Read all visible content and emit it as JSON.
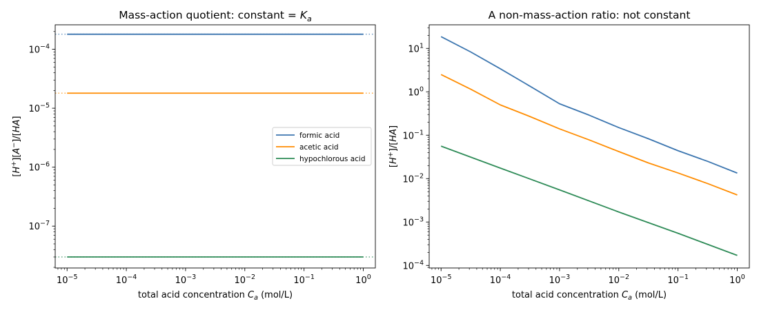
{
  "chart_data": [
    {
      "type": "line",
      "title": "Mass-action quotient: constant = K_a",
      "title_parts": [
        "Mass-action quotient: constant = ",
        "K",
        "a"
      ],
      "xlabel": "total acid concentration C_a (mol/L)",
      "xlabel_parts": [
        "total acid concentration ",
        "C",
        "a",
        " (mol/L)"
      ],
      "ylabel": "[H+][A−]/[HA]",
      "ylabel_parts": [
        "[",
        "H",
        "+",
        "][",
        "A",
        "−",
        "]/[",
        "HA",
        "]"
      ],
      "x_scale": "log",
      "y_scale": "log",
      "xlim": [
        6.3e-06,
        1.6
      ],
      "ylim": [
        1.95e-08,
        0.00026
      ],
      "x_ticks": [
        {
          "value": 1e-05,
          "mantissa": "10",
          "exp": "−5"
        },
        {
          "value": 0.0001,
          "mantissa": "10",
          "exp": "−4"
        },
        {
          "value": 0.001,
          "mantissa": "10",
          "exp": "−3"
        },
        {
          "value": 0.01,
          "mantissa": "10",
          "exp": "−2"
        },
        {
          "value": 0.1,
          "mantissa": "10",
          "exp": "−1"
        },
        {
          "value": 1,
          "mantissa": "10",
          "exp": "0"
        }
      ],
      "y_ticks": [
        {
          "value": 1e-07,
          "mantissa": "10",
          "exp": "−7"
        },
        {
          "value": 1e-06,
          "mantissa": "10",
          "exp": "−6"
        },
        {
          "value": 1e-05,
          "mantissa": "10",
          "exp": "−5"
        },
        {
          "value": 0.0001,
          "mantissa": "10",
          "exp": "−4"
        }
      ],
      "grid": false,
      "legend": {
        "position": "center-right"
      },
      "series": [
        {
          "name": "formic acid",
          "color": "#3b75af",
          "x": [
            1e-05,
            1
          ],
          "y": [
            0.00018,
            0.00018
          ],
          "reference_line": 0.00018
        },
        {
          "name": "acetic acid",
          "color": "#ff8c00",
          "x": [
            1e-05,
            1
          ],
          "y": [
            1.8e-05,
            1.8e-05
          ],
          "reference_line": 1.8e-05
        },
        {
          "name": "hypochlorous acid",
          "color": "#2e8b57",
          "x": [
            1e-05,
            1
          ],
          "y": [
            3e-08,
            3e-08
          ],
          "reference_line": 3e-08
        }
      ]
    },
    {
      "type": "line",
      "title": "A non-mass-action ratio: not constant",
      "title_parts": [
        "A non-mass-action ratio: not constant"
      ],
      "xlabel": "total acid concentration C_a (mol/L)",
      "xlabel_parts": [
        "total acid concentration ",
        "C",
        "a",
        " (mol/L)"
      ],
      "ylabel": "[H+]/[HA]",
      "ylabel_parts": [
        "[",
        "H",
        "+",
        "]/[",
        "HA",
        "]"
      ],
      "x_scale": "log",
      "y_scale": "log",
      "xlim": [
        6.3e-06,
        1.6
      ],
      "ylim": [
        8.73e-05,
        35
      ],
      "x_ticks": [
        {
          "value": 1e-05,
          "mantissa": "10",
          "exp": "−5"
        },
        {
          "value": 0.0001,
          "mantissa": "10",
          "exp": "−4"
        },
        {
          "value": 0.001,
          "mantissa": "10",
          "exp": "−3"
        },
        {
          "value": 0.01,
          "mantissa": "10",
          "exp": "−2"
        },
        {
          "value": 0.1,
          "mantissa": "10",
          "exp": "−1"
        },
        {
          "value": 1,
          "mantissa": "10",
          "exp": "0"
        }
      ],
      "y_ticks": [
        {
          "value": 0.0001,
          "mantissa": "10",
          "exp": "−4"
        },
        {
          "value": 0.001,
          "mantissa": "10",
          "exp": "−3"
        },
        {
          "value": 0.01,
          "mantissa": "10",
          "exp": "−2"
        },
        {
          "value": 0.1,
          "mantissa": "10",
          "exp": "−1"
        },
        {
          "value": 1,
          "mantissa": "10",
          "exp": "0"
        },
        {
          "value": 10,
          "mantissa": "10",
          "exp": "1"
        }
      ],
      "grid": false,
      "legend": null,
      "series": [
        {
          "color": "#3b75af",
          "x": [
            1e-05,
            3.16e-05,
            0.0001,
            0.000316,
            0.001,
            0.00316,
            0.01,
            0.0316,
            0.1,
            0.316,
            1
          ],
          "y": [
            18.7,
            8.3,
            3.4,
            1.35,
            0.53,
            0.29,
            0.15,
            0.083,
            0.044,
            0.025,
            0.0134
          ]
        },
        {
          "color": "#ff8c00",
          "x": [
            1e-05,
            3.16e-05,
            0.0001,
            0.000316,
            0.001,
            0.00316,
            0.01,
            0.0316,
            0.1,
            0.316,
            1
          ],
          "y": [
            2.5,
            1.15,
            0.5,
            0.27,
            0.14,
            0.078,
            0.042,
            0.023,
            0.0135,
            0.0077,
            0.0042
          ]
        },
        {
          "color": "#2e8b57",
          "x": [
            1e-05,
            0.0001,
            0.001,
            0.01,
            0.1,
            1
          ],
          "y": [
            0.056,
            0.0175,
            0.0055,
            0.0017,
            0.00055,
            0.00017
          ]
        }
      ]
    }
  ]
}
